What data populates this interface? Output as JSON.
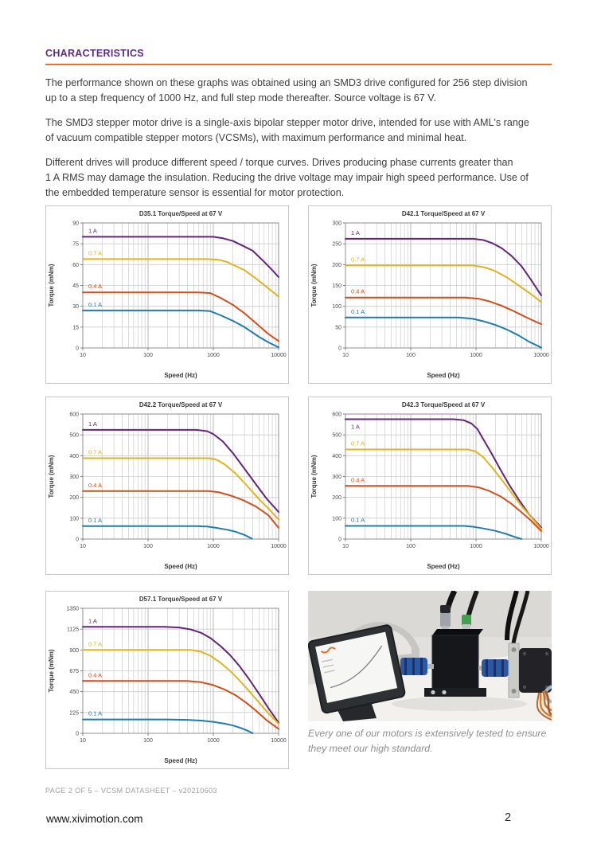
{
  "page": {
    "heading": "CHARACTERISTICS",
    "paragraphs": [
      "The performance shown on these graphs was obtained using an SMD3 drive configured for 256 step division\nup to a step frequency of 1000 Hz, and full step mode thereafter. Source voltage is 67 V.",
      "The SMD3 stepper motor drive is a single-axis bipolar stepper motor drive, intended for use with AML's range\nof vacuum compatible stepper motors (VCSMs), with maximum performance and minimal heat.",
      "Different drives will produce different speed / torque curves. Drives producing phase currents greater than\n1 A RMS may damage the insulation. Reducing the drive voltage may impair high speed performance. Use of\nthe embedded temperature sensor is essential for motor protection."
    ],
    "footer_line": "PAGE 2 OF 5 – VCSM DATASHEET – v20210603",
    "website": "www.xivimotion.com",
    "page_number": "2"
  },
  "photo": {
    "caption": "Every one of our motors is extensively tested to ensure\nthey meet our high standard.",
    "alt_name": "motor-test-rig-photo"
  },
  "colors": {
    "heading": "#5b2d82",
    "rule": "#e0722a",
    "series_1a": "#632577",
    "series_07a": "#e0b420",
    "series_04a": "#d24f1a",
    "series_01a": "#1e7cb0",
    "grid_minor": "#cccccc",
    "grid_major": "#b0b0b0",
    "plot_border": "#8f8f8f"
  },
  "chart_data": [
    {
      "type": "line",
      "title": "D35.1 Torque/Speed at 67 V",
      "xlabel": "Speed (Hz)",
      "ylabel": "Torque (mNm)",
      "xscale": "log",
      "xlim": [
        10,
        10000
      ],
      "xticks": [
        10,
        100,
        1000,
        10000
      ],
      "ylim": [
        0,
        90
      ],
      "yticks": [
        0,
        15,
        30,
        45,
        60,
        75,
        90
      ],
      "series": [
        {
          "name": "1 A",
          "color": "#632577",
          "points": [
            [
              10,
              80
            ],
            [
              600,
              80
            ],
            [
              1000,
              80
            ],
            [
              1400,
              79
            ],
            [
              2000,
              77
            ],
            [
              3000,
              73
            ],
            [
              4000,
              70
            ],
            [
              6000,
              62
            ],
            [
              8000,
              56
            ],
            [
              10000,
              51
            ]
          ]
        },
        {
          "name": "0.7 A",
          "color": "#e0b420",
          "points": [
            [
              10,
              64
            ],
            [
              800,
              64
            ],
            [
              1200,
              63.5
            ],
            [
              1600,
              62
            ],
            [
              2200,
              59
            ],
            [
              3000,
              56
            ],
            [
              4500,
              50
            ],
            [
              6500,
              44
            ],
            [
              10000,
              37
            ]
          ]
        },
        {
          "name": "0.4 A",
          "color": "#d24f1a",
          "points": [
            [
              10,
              40
            ],
            [
              600,
              40
            ],
            [
              900,
              39.5
            ],
            [
              1300,
              36
            ],
            [
              2000,
              31
            ],
            [
              3000,
              25
            ],
            [
              5000,
              16
            ],
            [
              7000,
              10
            ],
            [
              10000,
              5
            ]
          ]
        },
        {
          "name": "0.1 A",
          "color": "#1e7cb0",
          "points": [
            [
              10,
              27
            ],
            [
              600,
              27
            ],
            [
              900,
              26.5
            ],
            [
              1300,
              23.5
            ],
            [
              2000,
              19.5
            ],
            [
              3000,
              15
            ],
            [
              5000,
              8
            ],
            [
              7000,
              4
            ],
            [
              10000,
              0.5
            ]
          ]
        }
      ]
    },
    {
      "type": "line",
      "title": "D42.1 Torque/Speed at 67 V",
      "xlabel": "Speed (Hz)",
      "ylabel": "Torque (mNm)",
      "xscale": "log",
      "xlim": [
        10,
        10000
      ],
      "xticks": [
        10,
        100,
        1000,
        10000
      ],
      "ylim": [
        0,
        300
      ],
      "yticks": [
        0,
        50,
        100,
        150,
        200,
        250,
        300
      ],
      "series": [
        {
          "name": "1 A",
          "color": "#632577",
          "points": [
            [
              10,
              262
            ],
            [
              900,
              262
            ],
            [
              1300,
              259
            ],
            [
              1800,
              251
            ],
            [
              2500,
              239
            ],
            [
              3500,
              221
            ],
            [
              5000,
              196
            ],
            [
              7000,
              163
            ],
            [
              10000,
              126
            ]
          ]
        },
        {
          "name": "0.7 A",
          "color": "#e0b420",
          "points": [
            [
              10,
              198
            ],
            [
              900,
              198
            ],
            [
              1400,
              193
            ],
            [
              2000,
              184
            ],
            [
              3000,
              169
            ],
            [
              4500,
              150
            ],
            [
              7000,
              129
            ],
            [
              10000,
              110
            ]
          ]
        },
        {
          "name": "0.4 A",
          "color": "#d24f1a",
          "points": [
            [
              10,
              121
            ],
            [
              700,
              121
            ],
            [
              1100,
              118
            ],
            [
              1600,
              112
            ],
            [
              2400,
              102
            ],
            [
              3500,
              91
            ],
            [
              5000,
              79
            ],
            [
              7000,
              68
            ],
            [
              10000,
              57
            ]
          ]
        },
        {
          "name": "0.1 A",
          "color": "#1e7cb0",
          "points": [
            [
              10,
              73
            ],
            [
              550,
              73
            ],
            [
              900,
              70
            ],
            [
              1300,
              64
            ],
            [
              2000,
              55
            ],
            [
              3000,
              44
            ],
            [
              4500,
              30
            ],
            [
              6500,
              15
            ],
            [
              10000,
              1
            ]
          ]
        }
      ]
    },
    {
      "type": "line",
      "title": "D42.2 Torque/Speed at 67 V",
      "xlabel": "Speed (Hz)",
      "ylabel": "Torque (mNm)",
      "xscale": "log",
      "xlim": [
        10,
        10000
      ],
      "xticks": [
        10,
        100,
        1000,
        10000
      ],
      "ylim": [
        0,
        600
      ],
      "yticks": [
        0,
        100,
        200,
        300,
        400,
        500,
        600
      ],
      "series": [
        {
          "name": "1 A",
          "color": "#632577",
          "points": [
            [
              10,
              524
            ],
            [
              550,
              524
            ],
            [
              800,
              518
            ],
            [
              1000,
              504
            ],
            [
              1400,
              468
            ],
            [
              2000,
              412
            ],
            [
              3000,
              338
            ],
            [
              4500,
              262
            ],
            [
              6500,
              195
            ],
            [
              10000,
              130
            ]
          ]
        },
        {
          "name": "0.7 A",
          "color": "#e0b420",
          "points": [
            [
              10,
              388
            ],
            [
              850,
              388
            ],
            [
              1100,
              382
            ],
            [
              1500,
              358
            ],
            [
              2200,
              314
            ],
            [
              3200,
              260
            ],
            [
              5000,
              192
            ],
            [
              7000,
              146
            ],
            [
              10000,
              94
            ]
          ]
        },
        {
          "name": "0.4 A",
          "color": "#d24f1a",
          "points": [
            [
              10,
              230
            ],
            [
              850,
              230
            ],
            [
              1200,
              225
            ],
            [
              1800,
              210
            ],
            [
              2800,
              188
            ],
            [
              4500,
              156
            ],
            [
              7000,
              114
            ],
            [
              10000,
              54
            ]
          ]
        },
        {
          "name": "0.1 A",
          "color": "#1e7cb0",
          "points": [
            [
              10,
              62
            ],
            [
              550,
              62
            ],
            [
              800,
              60
            ],
            [
              1100,
              54
            ],
            [
              1600,
              45
            ],
            [
              2200,
              35
            ],
            [
              3000,
              20
            ],
            [
              3900,
              2
            ]
          ]
        }
      ]
    },
    {
      "type": "line",
      "title": "D42.3 Torque/Speed at 67 V",
      "xlabel": "Speed (Hz)",
      "ylabel": "Torque (mNm)",
      "xscale": "log",
      "xlim": [
        10,
        10000
      ],
      "xticks": [
        10,
        100,
        1000,
        10000
      ],
      "ylim": [
        0,
        600
      ],
      "yticks": [
        0,
        100,
        200,
        300,
        400,
        500,
        600
      ],
      "series": [
        {
          "name": "1 A",
          "color": "#632577",
          "label_below": true,
          "points": [
            [
              10,
              575
            ],
            [
              450,
              575
            ],
            [
              650,
              570
            ],
            [
              850,
              555
            ],
            [
              1050,
              528
            ],
            [
              1300,
              478
            ],
            [
              1700,
              415
            ],
            [
              2300,
              340
            ],
            [
              3200,
              262
            ],
            [
              4500,
              190
            ],
            [
              6500,
              118
            ],
            [
              10000,
              55
            ]
          ]
        },
        {
          "name": "0.7 A",
          "color": "#e0b420",
          "points": [
            [
              10,
              430
            ],
            [
              750,
              430
            ],
            [
              1000,
              420
            ],
            [
              1300,
              392
            ],
            [
              1800,
              340
            ],
            [
              2500,
              283
            ],
            [
              3500,
              222
            ],
            [
              5000,
              158
            ],
            [
              7000,
              106
            ],
            [
              10000,
              48
            ]
          ]
        },
        {
          "name": "0.4 A",
          "color": "#d24f1a",
          "points": [
            [
              10,
              255
            ],
            [
              750,
              255
            ],
            [
              1100,
              248
            ],
            [
              1600,
              231
            ],
            [
              2400,
              204
            ],
            [
              3500,
              169
            ],
            [
              5000,
              128
            ],
            [
              7000,
              88
            ],
            [
              10000,
              38
            ]
          ]
        },
        {
          "name": "0.1 A",
          "color": "#1e7cb0",
          "points": [
            [
              10,
              63
            ],
            [
              650,
              63
            ],
            [
              950,
              58
            ],
            [
              1400,
              49
            ],
            [
              2000,
              39
            ],
            [
              2800,
              26
            ],
            [
              3800,
              12
            ],
            [
              5000,
              0.5
            ]
          ]
        }
      ]
    },
    {
      "type": "line",
      "title": "D57.1 Torque/Speed at 67 V",
      "xlabel": "Speed (Hz)",
      "ylabel": "Torque (mNm)",
      "xscale": "log",
      "xlim": [
        10,
        10000
      ],
      "xticks": [
        10,
        100,
        1000,
        10000
      ],
      "ylim": [
        0,
        1350
      ],
      "yticks": [
        0,
        225,
        450,
        675,
        900,
        1125,
        1350
      ],
      "series": [
        {
          "name": "1 A",
          "color": "#632577",
          "points": [
            [
              10,
              1150
            ],
            [
              180,
              1150
            ],
            [
              300,
              1143
            ],
            [
              450,
              1122
            ],
            [
              650,
              1085
            ],
            [
              900,
              1030
            ],
            [
              1300,
              941
            ],
            [
              1800,
              846
            ],
            [
              2500,
              729
            ],
            [
              3500,
              589
            ],
            [
              5000,
              428
            ],
            [
              7000,
              270
            ],
            [
              10000,
              115
            ]
          ]
        },
        {
          "name": "0.7 A",
          "color": "#e0b420",
          "points": [
            [
              10,
              900
            ],
            [
              450,
              900
            ],
            [
              650,
              881
            ],
            [
              900,
              838
            ],
            [
              1300,
              760
            ],
            [
              1800,
              676
            ],
            [
              2500,
              574
            ],
            [
              3500,
              459
            ],
            [
              5000,
              334
            ],
            [
              7000,
              214
            ],
            [
              10000,
              104
            ]
          ]
        },
        {
          "name": "0.4 A",
          "color": "#d24f1a",
          "points": [
            [
              10,
              565
            ],
            [
              400,
              565
            ],
            [
              650,
              552
            ],
            [
              1000,
              521
            ],
            [
              1500,
              472
            ],
            [
              2200,
              411
            ],
            [
              3200,
              329
            ],
            [
              4500,
              244
            ],
            [
              6500,
              144
            ],
            [
              10000,
              47
            ]
          ]
        },
        {
          "name": "0.1 A",
          "color": "#1e7cb0",
          "points": [
            [
              10,
              150
            ],
            [
              200,
              150
            ],
            [
              400,
              145
            ],
            [
              700,
              136
            ],
            [
              1000,
              124
            ],
            [
              1500,
              104
            ],
            [
              2000,
              84
            ],
            [
              2700,
              55
            ],
            [
              3500,
              22
            ],
            [
              4000,
              1
            ]
          ]
        }
      ]
    }
  ]
}
